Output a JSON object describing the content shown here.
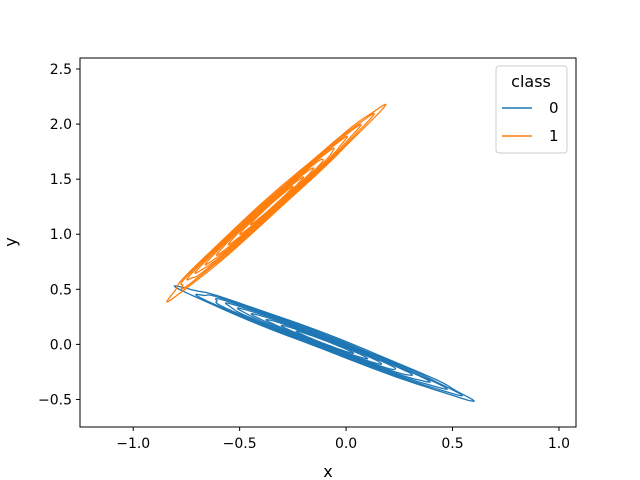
{
  "chart_data": {
    "type": "contour",
    "title": "",
    "xlabel": "x",
    "ylabel": "y",
    "xlim": [
      -1.25,
      1.08
    ],
    "ylim": [
      -0.75,
      2.6
    ],
    "xticks": [
      -1.0,
      -0.5,
      0.0,
      0.5,
      1.0
    ],
    "xtick_labels": [
      "−1.0",
      "−0.5",
      "0.0",
      "0.5",
      "1.0"
    ],
    "yticks": [
      -0.5,
      0.0,
      0.5,
      1.0,
      1.5,
      2.0,
      2.5
    ],
    "ytick_labels": [
      "−0.5",
      "0.0",
      "0.5",
      "1.0",
      "1.5",
      "2.0",
      "2.5"
    ],
    "grid": false,
    "legend": {
      "title": "class",
      "placement": "top-right",
      "entries": [
        "0",
        "1"
      ]
    },
    "series": [
      {
        "name": "0",
        "color": "#1f77b4",
        "center": [
          -0.1,
          0.02
        ],
        "levels": 9,
        "outer_extent": {
          "x": [
            -0.68,
            0.67
          ],
          "y": [
            -0.48,
            0.44
          ]
        },
        "angle_deg": -21
      },
      {
        "name": "1",
        "color": "#ff7f0e",
        "center": [
          -0.35,
          1.26
        ],
        "levels": 9,
        "outer_extent": {
          "x": [
            -0.82,
            0.07
          ],
          "y": [
            0.67,
            2.11
          ]
        },
        "angle_deg": 42
      }
    ]
  }
}
